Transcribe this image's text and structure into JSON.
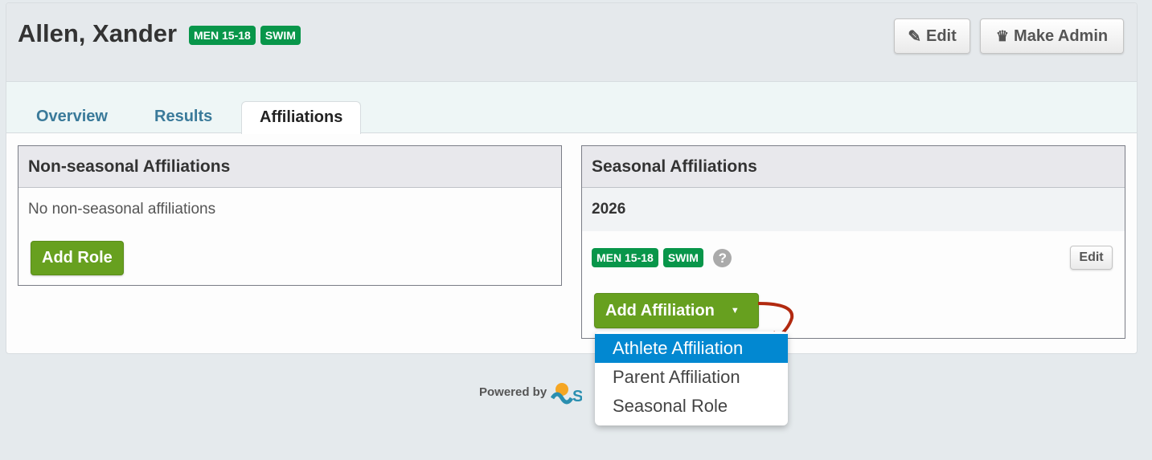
{
  "header": {
    "title": "Allen, Xander",
    "badges": [
      "MEN 15-18",
      "SWIM"
    ],
    "edit_label": "Edit",
    "make_admin_label": "Make Admin"
  },
  "tabs": [
    {
      "label": "Overview"
    },
    {
      "label": "Results"
    },
    {
      "label": "Affiliations",
      "active": true
    }
  ],
  "non_seasonal": {
    "title": "Non-seasonal Affiliations",
    "empty_text": "No non-seasonal affiliations",
    "add_role_label": "Add Role"
  },
  "seasonal": {
    "title": "Seasonal Affiliations",
    "season": "2026",
    "badges": [
      "MEN 15-18",
      "SWIM"
    ],
    "help_icon": "question-circle-icon",
    "edit_label": "Edit",
    "add_affiliation_label": "Add Affiliation"
  },
  "dropdown": {
    "items": [
      {
        "label": "Athlete Affiliation",
        "highlighted": true
      },
      {
        "label": "Parent Affiliation"
      },
      {
        "label": "Seasonal Role"
      }
    ]
  },
  "footer": {
    "powered_by": "Powered by"
  },
  "colors": {
    "badge": "#08964a",
    "primary_green": "#67a01f",
    "highlight": "#0288d1",
    "arrow": "#b22a10"
  }
}
